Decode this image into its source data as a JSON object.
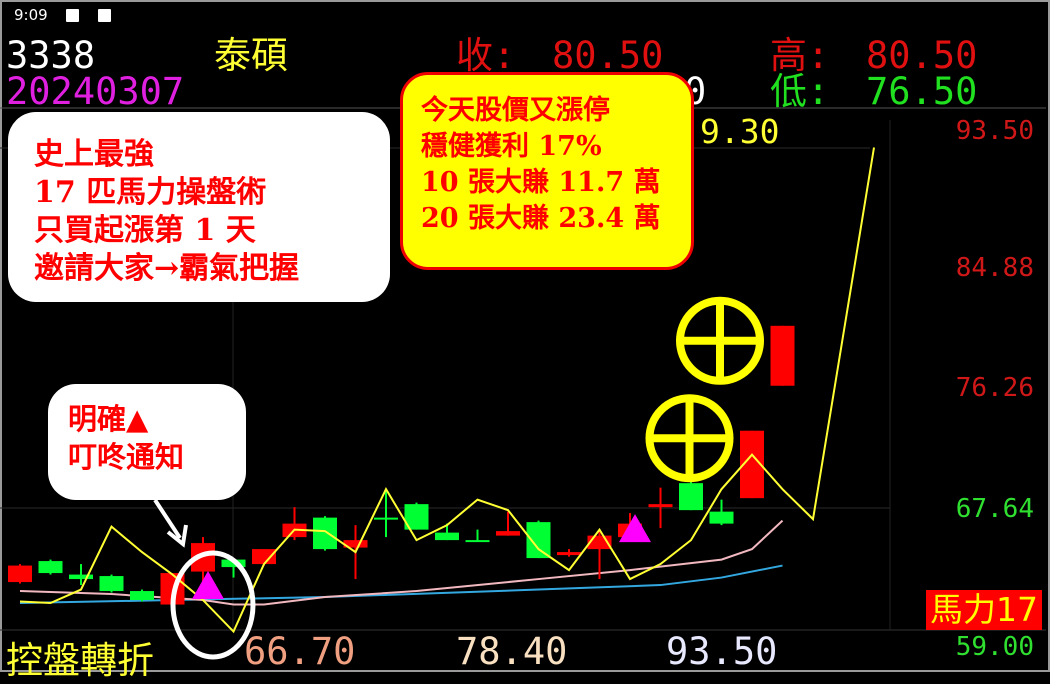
{
  "status_bar": {
    "time": "9:09",
    "icons": [
      "image-icon",
      "font-icon"
    ]
  },
  "header": {
    "code": "3338",
    "name": "泰碩",
    "close_label": "收:",
    "close_value": "80.50",
    "high_label": "高:",
    "high_value": "80.50",
    "date": "20240307",
    "partial_open": "0",
    "low_label": "低:",
    "low_value": "76.50",
    "partial_row3": "9.30"
  },
  "price_axis": [
    "93.50",
    "84.88",
    "76.26",
    "67.64",
    "59.00"
  ],
  "indicator": {
    "label": "控盤轉折",
    "v1": "66.70",
    "v2": "78.40",
    "v3": "93.50",
    "badge": "馬力17"
  },
  "callouts": {
    "left": [
      "史上最強",
      "17 匹馬力操盤術",
      "只買起漲第 1 天",
      "邀請大家→霸氣把握"
    ],
    "right": [
      "今天股價又漲停",
      "穩健獲利 17%",
      "10 張大賺 11.7 萬",
      "20 張大賺 23.4 萬"
    ],
    "small": [
      "明確▲",
      "叮咚通知"
    ]
  },
  "colors": {
    "up": "#ff0000",
    "down": "#00ff33",
    "turn_line": "#ffff33",
    "ma_short": "#f2b8c0",
    "ma_long": "#33a8e0",
    "signal": "#ff00ff"
  },
  "chart_data": {
    "type": "candlestick",
    "ylim": [
      59.0,
      93.5
    ],
    "candles": [
      {
        "o": 63.4,
        "h": 64.6,
        "l": 63.3,
        "c": 64.5
      },
      {
        "o": 64.8,
        "h": 64.9,
        "l": 63.9,
        "c": 64.0
      },
      {
        "o": 63.9,
        "h": 64.6,
        "l": 63.2,
        "c": 63.6
      },
      {
        "o": 63.8,
        "h": 63.9,
        "l": 62.7,
        "c": 62.8
      },
      {
        "o": 62.8,
        "h": 62.9,
        "l": 62.1,
        "c": 62.2
      },
      {
        "o": 61.9,
        "h": 64.0,
        "l": 61.8,
        "c": 64.0
      },
      {
        "o": 64.1,
        "h": 66.4,
        "l": 62.4,
        "c": 66.0
      },
      {
        "o": 64.9,
        "h": 64.9,
        "l": 63.7,
        "c": 64.4
      },
      {
        "o": 64.6,
        "h": 65.6,
        "l": 64.5,
        "c": 65.6
      },
      {
        "o": 66.4,
        "h": 68.4,
        "l": 66.2,
        "c": 67.3
      },
      {
        "o": 67.7,
        "h": 67.8,
        "l": 65.5,
        "c": 65.6
      },
      {
        "o": 65.7,
        "h": 67.2,
        "l": 63.6,
        "c": 66.2
      },
      {
        "o": 67.7,
        "h": 69.6,
        "l": 66.4,
        "c": 67.6
      },
      {
        "o": 68.6,
        "h": 68.7,
        "l": 66.9,
        "c": 66.9
      },
      {
        "o": 66.7,
        "h": 67.3,
        "l": 66.2,
        "c": 66.2
      },
      {
        "o": 66.2,
        "h": 66.9,
        "l": 66.1,
        "c": 66.1
      },
      {
        "o": 66.5,
        "h": 68.1,
        "l": 66.5,
        "c": 66.8
      },
      {
        "o": 67.4,
        "h": 67.5,
        "l": 65.0,
        "c": 65.0
      },
      {
        "o": 65.2,
        "h": 65.6,
        "l": 65.1,
        "c": 65.4
      },
      {
        "o": 65.6,
        "h": 66.8,
        "l": 63.6,
        "c": 66.5
      },
      {
        "o": 66.4,
        "h": 68.0,
        "l": 66.2,
        "c": 67.3
      },
      {
        "o": 68.4,
        "h": 69.7,
        "l": 67.0,
        "c": 68.6
      },
      {
        "o": 70.0,
        "h": 71.6,
        "l": 68.2,
        "c": 68.2
      },
      {
        "o": 68.1,
        "h": 68.9,
        "l": 67.2,
        "c": 67.3
      },
      {
        "o": 69.0,
        "h": 73.5,
        "l": 69.0,
        "c": 73.5
      },
      {
        "o": 76.5,
        "h": 80.5,
        "l": 76.5,
        "c": 80.5
      }
    ],
    "turn_line": [
      [
        0,
        62.1
      ],
      [
        1,
        62.0
      ],
      [
        2,
        62.9
      ],
      [
        3,
        67.1
      ],
      [
        4,
        65.4
      ],
      [
        5,
        63.9
      ],
      [
        6,
        62.2
      ],
      [
        7,
        60.1
      ],
      [
        8,
        64.6
      ],
      [
        9,
        66.9
      ],
      [
        10,
        66.8
      ],
      [
        11,
        65.4
      ],
      [
        12,
        69.6
      ],
      [
        13,
        66.2
      ],
      [
        14,
        67.2
      ],
      [
        15,
        68.9
      ],
      [
        16,
        68.2
      ],
      [
        17,
        65.6
      ],
      [
        18,
        64.2
      ],
      [
        19,
        66.9
      ],
      [
        20,
        63.6
      ],
      [
        21,
        64.6
      ],
      [
        22,
        66.2
      ],
      [
        23,
        69.6
      ],
      [
        24,
        71.9
      ],
      [
        25,
        69.6
      ],
      [
        26,
        67.6
      ],
      [
        28,
        92.4
      ]
    ],
    "ma_short": [
      [
        0,
        62.8
      ],
      [
        3,
        62.6
      ],
      [
        6,
        62.2
      ],
      [
        7,
        61.9
      ],
      [
        8,
        61.9
      ],
      [
        10,
        62.4
      ],
      [
        13,
        62.8
      ],
      [
        17,
        63.6
      ],
      [
        20,
        64.2
      ],
      [
        23,
        64.9
      ],
      [
        24,
        65.6
      ],
      [
        25,
        67.5
      ]
    ],
    "ma_long": [
      [
        0,
        62.0
      ],
      [
        5,
        62.2
      ],
      [
        10,
        62.4
      ],
      [
        17,
        62.9
      ],
      [
        21,
        63.2
      ],
      [
        23,
        63.7
      ],
      [
        25,
        64.5
      ]
    ],
    "signals": [
      6,
      20
    ],
    "target_marks": [
      [
        24,
        79.5
      ],
      [
        23,
        73.0
      ]
    ]
  }
}
